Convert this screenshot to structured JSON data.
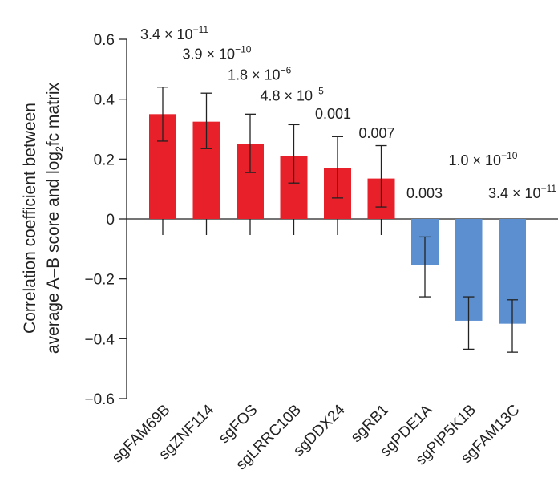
{
  "chart_data": {
    "type": "bar",
    "title": "",
    "xlabel": "",
    "ylabel_line1": "Correlation coefficient between",
    "ylabel_line2_pre": "average A–B score and log",
    "ylabel_line2_sub": "2",
    "ylabel_line2_post": "fc matrix",
    "ylim": [
      -0.6,
      0.6
    ],
    "yticks": [
      {
        "value": 0.6,
        "label": "0.6"
      },
      {
        "value": 0.4,
        "label": "0.4"
      },
      {
        "value": 0.2,
        "label": "0.2"
      },
      {
        "value": 0,
        "label": "0"
      },
      {
        "value": -0.2,
        "label": "-0.2"
      },
      {
        "value": -0.4,
        "label": "-0.4"
      },
      {
        "value": -0.6,
        "label": "-0.6"
      }
    ],
    "categories": [
      "sgFAM69B",
      "sgZNF114",
      "sgFOS",
      "sgLRRC10B",
      "sgDDX24",
      "sgRB1",
      "sgPDE1A",
      "sgPIP5K1B",
      "sgFAM13C"
    ],
    "values": [
      0.35,
      0.325,
      0.25,
      0.21,
      0.17,
      0.135,
      -0.155,
      -0.34,
      -0.35
    ],
    "error_low": [
      0.26,
      0.235,
      0.155,
      0.12,
      0.07,
      0.04,
      -0.26,
      -0.435,
      -0.445
    ],
    "error_high": [
      0.44,
      0.42,
      0.35,
      0.315,
      0.275,
      0.245,
      -0.06,
      -0.26,
      -0.27
    ],
    "pvalues": [
      {
        "base": "3.4 × 10",
        "exp": "−11"
      },
      {
        "base": "3.9 × 10",
        "exp": "−10"
      },
      {
        "base": "1.8 × 10",
        "exp": "−6"
      },
      {
        "base": "4.8 × 10",
        "exp": "−5"
      },
      {
        "base": "0.001",
        "exp": ""
      },
      {
        "base": "0.007",
        "exp": ""
      },
      {
        "base": "0.003",
        "exp": ""
      },
      {
        "base": "1.0 × 10",
        "exp": "−10"
      },
      {
        "base": "3.4 × 10",
        "exp": "−11"
      }
    ],
    "pvalue_levels": [
      0.6,
      0.535,
      0.465,
      0.395,
      0.335,
      0.27,
      0.07,
      0.18,
      0.07
    ],
    "colors": {
      "positive": "#e8202a",
      "negative": "#5b8fd0",
      "axis": "#222222"
    }
  }
}
